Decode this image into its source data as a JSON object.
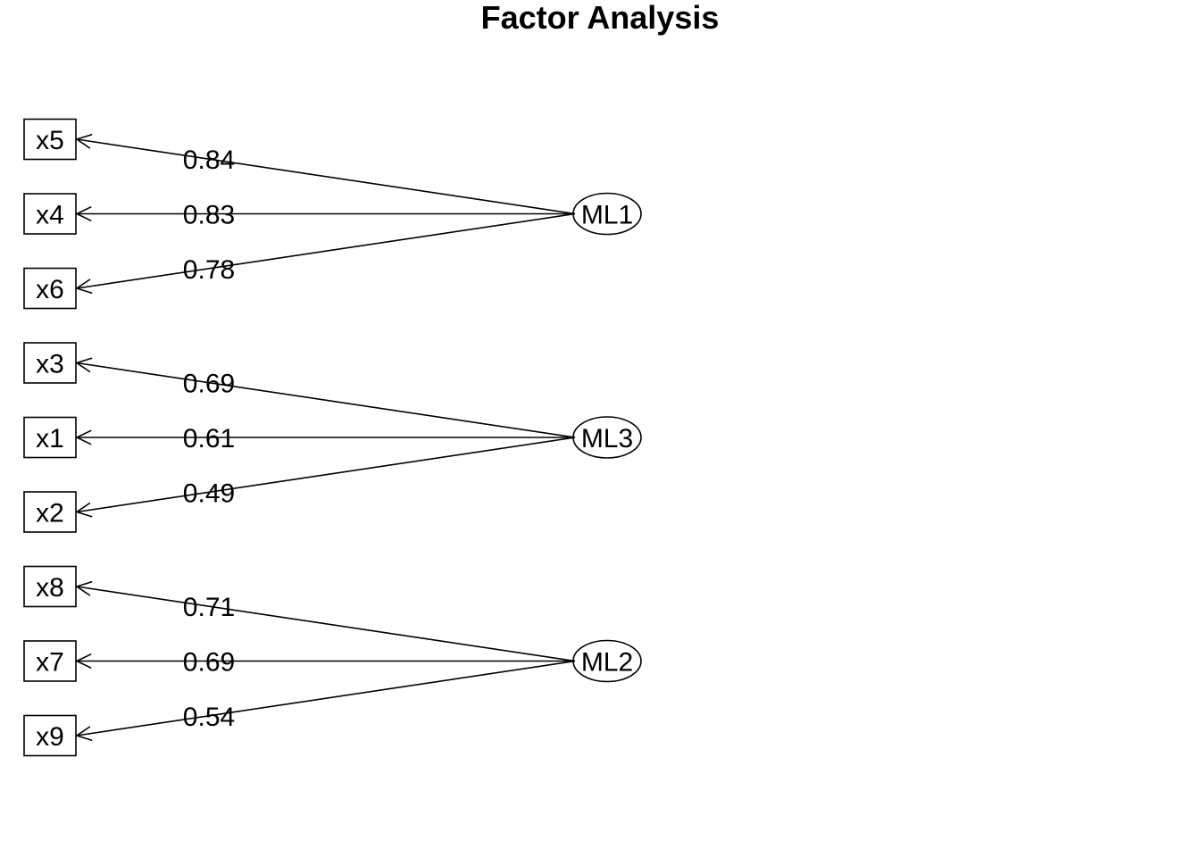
{
  "title": "Factor Analysis",
  "colors": {
    "line": "#000000",
    "background": "#ffffff"
  },
  "factors": [
    {
      "name": "ML1",
      "loadings": [
        {
          "variable": "x5",
          "value": "0.84"
        },
        {
          "variable": "x4",
          "value": "0.83"
        },
        {
          "variable": "x6",
          "value": "0.78"
        }
      ]
    },
    {
      "name": "ML3",
      "loadings": [
        {
          "variable": "x3",
          "value": "0.69"
        },
        {
          "variable": "x1",
          "value": "0.61"
        },
        {
          "variable": "x2",
          "value": "0.49"
        }
      ]
    },
    {
      "name": "ML2",
      "loadings": [
        {
          "variable": "x8",
          "value": "0.71"
        },
        {
          "variable": "x7",
          "value": "0.69"
        },
        {
          "variable": "x9",
          "value": "0.54"
        }
      ]
    }
  ]
}
